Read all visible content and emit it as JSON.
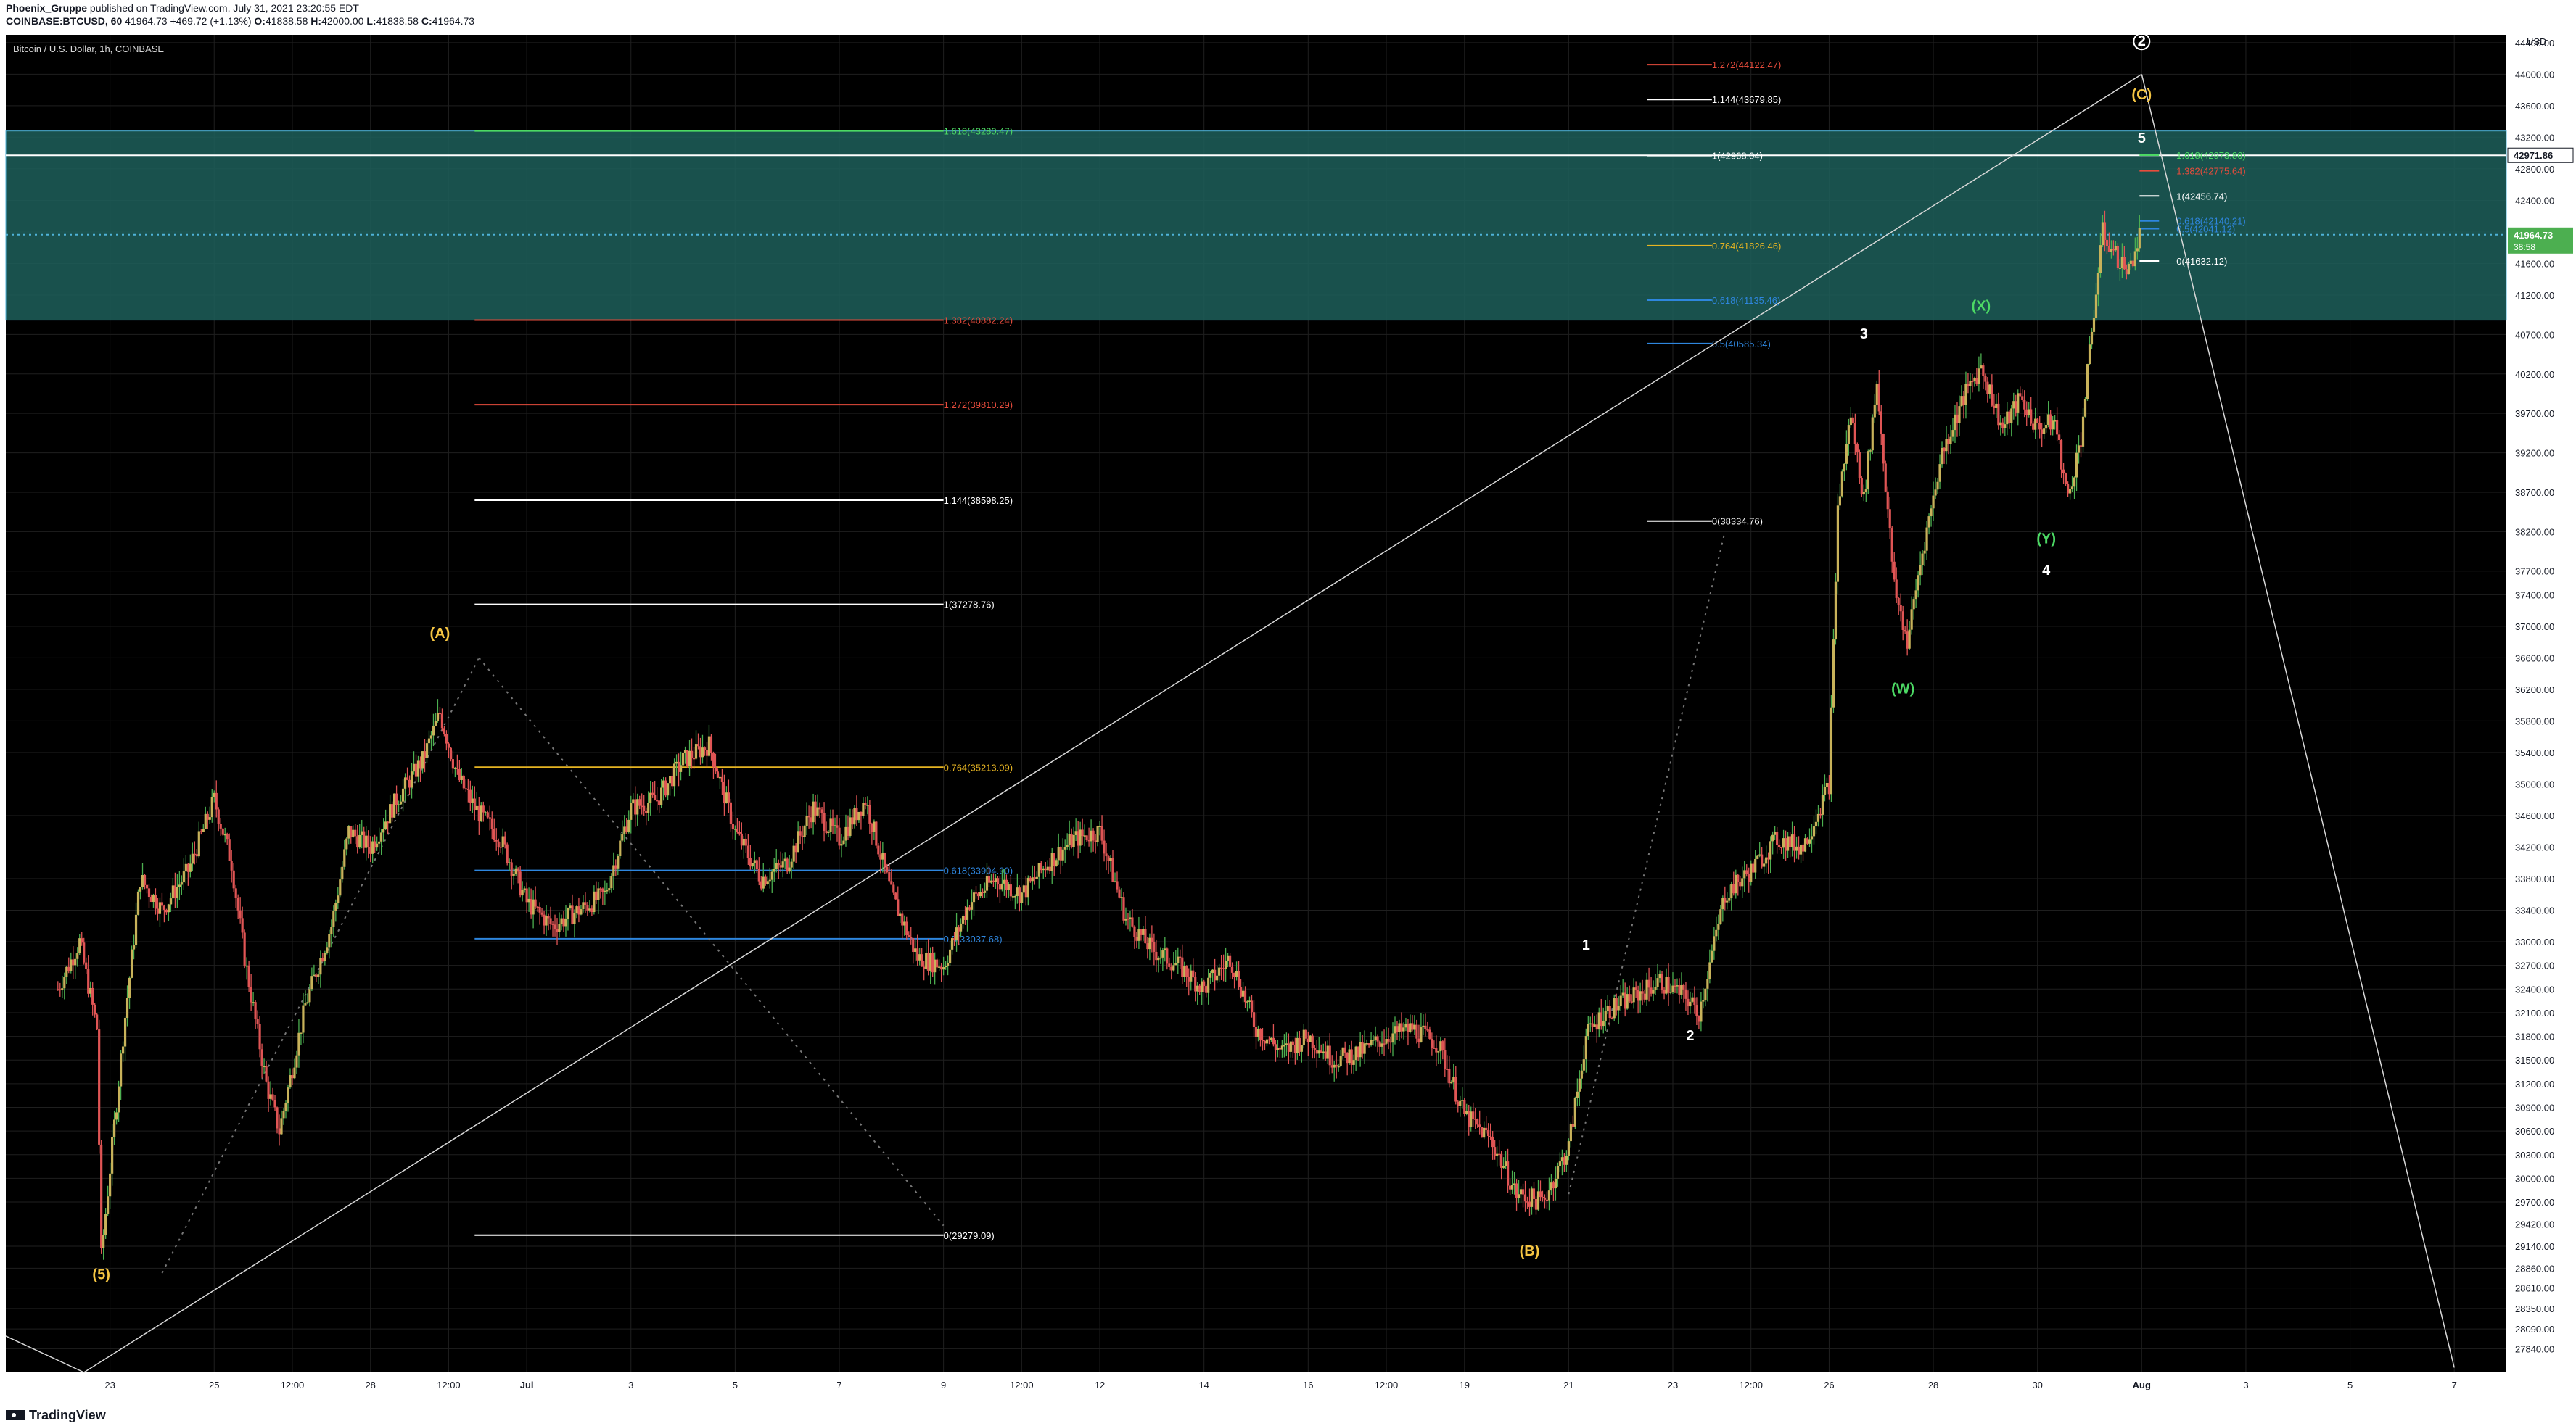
{
  "header": {
    "published_by": "Phoenix_Gruppe",
    "published_text": "published on TradingView.com, July 31, 2021 23:20:55 EDT",
    "symbol_line": "COINBASE:BTCUSD, 60",
    "price_now": "41964.73",
    "change": "+469.72 (+1.13%)",
    "ohlc": {
      "o_label": "O:",
      "o": "41838.58",
      "h_label": "H:",
      "h": "42000.00",
      "l_label": "L:",
      "l": "41838.58",
      "c_label": "C:",
      "c": "41964.73"
    }
  },
  "footer": {
    "brand": "TradingView"
  },
  "colors": {
    "background": "#000000",
    "grid": "#1f1f1f",
    "candle_up": "#4caf50",
    "candle_down": "#e05555",
    "candle_body_up": "#c8b25a",
    "zone_fill": "#1d5f5a",
    "fib_gold": "#e6b422",
    "fib_blue": "#2e86de",
    "fib_red": "#e74c3c",
    "fib_green": "#4cd964",
    "fib_white": "#d8d8d8",
    "wave_yellow": "#f5c542",
    "wave_green": "#4cd964",
    "last_price": "#4caf50",
    "crosshair_price": "#2962ff"
  },
  "chart_data": {
    "type": "candlestick",
    "title": "Bitcoin / U.S. Dollar, 1h, COINBASE",
    "ylabel": "USD",
    "ylim": [
      27540,
      44500
    ],
    "x_tick_labels": [
      "23",
      "25",
      "12:00",
      "28",
      "12:00",
      "Jul",
      "3",
      "5",
      "7",
      "9",
      "12:00",
      "12",
      "14",
      "16",
      "12:00",
      "19",
      "21",
      "23",
      "12:00",
      "26",
      "28",
      "30",
      "Aug",
      "3",
      "5",
      "7"
    ],
    "y_tick_labels": [
      "44400.00",
      "44000.00",
      "43600.00",
      "43200.00",
      "42800.00",
      "42400.00",
      "42000.00",
      "41600.00",
      "41200.00",
      "40700.00",
      "40200.00",
      "39700.00",
      "39200.00",
      "38700.00",
      "38200.00",
      "37700.00",
      "37400.00",
      "37000.00",
      "36600.00",
      "36200.00",
      "35800.00",
      "35400.00",
      "35000.00",
      "34600.00",
      "34200.00",
      "33800.00",
      "33400.00",
      "33000.00",
      "32700.00",
      "32400.00",
      "32100.00",
      "31800.00",
      "31500.00",
      "31200.00",
      "30900.00",
      "30600.00",
      "30300.00",
      "30000.00",
      "29700.00",
      "29420.00",
      "29140.00",
      "28860.00",
      "28610.00",
      "28350.00",
      "28090.00",
      "27840.00"
    ],
    "price_tags": [
      {
        "label": "42971.86",
        "value": 42971.86
      },
      {
        "label": "41964.73",
        "sub": "38:58",
        "value": 41964.73
      }
    ],
    "price_path": [
      {
        "d": "Jun 22 00:00",
        "p": 32400
      },
      {
        "d": "Jun 22 10:00",
        "p": 33000
      },
      {
        "d": "Jun 22 18:00",
        "p": 31900
      },
      {
        "d": "Jun 22 20:00",
        "p": 29000
      },
      {
        "d": "Jun 23 06:00",
        "p": 31800
      },
      {
        "d": "Jun 23 14:00",
        "p": 33800
      },
      {
        "d": "Jun 24 00:00",
        "p": 33400
      },
      {
        "d": "Jun 24 12:00",
        "p": 33900
      },
      {
        "d": "Jun 25 00:00",
        "p": 34800
      },
      {
        "d": "Jun 25 08:00",
        "p": 34000
      },
      {
        "d": "Jun 25 14:00",
        "p": 32800
      },
      {
        "d": "Jun 26 00:00",
        "p": 31200
      },
      {
        "d": "Jun 26 06:00",
        "p": 30600
      },
      {
        "d": "Jun 26 18:00",
        "p": 32200
      },
      {
        "d": "Jun 27 06:00",
        "p": 33200
      },
      {
        "d": "Jun 27 14:00",
        "p": 34400
      },
      {
        "d": "Jun 28 00:00",
        "p": 34200
      },
      {
        "d": "Jun 28 12:00",
        "p": 34800
      },
      {
        "d": "Jun 29 00:00",
        "p": 35300
      },
      {
        "d": "Jun 29 08:00",
        "p": 35900
      },
      {
        "d": "Jun 29 16:00",
        "p": 35100
      },
      {
        "d": "Jun 30 00:00",
        "p": 34700
      },
      {
        "d": "Jun 30 12:00",
        "p": 34300
      },
      {
        "d": "Jul 1 00:00",
        "p": 33500
      },
      {
        "d": "Jul 1 12:00",
        "p": 33200
      },
      {
        "d": "Jul 2 00:00",
        "p": 33400
      },
      {
        "d": "Jul 2 12:00",
        "p": 33600
      },
      {
        "d": "Jul 3 00:00",
        "p": 34700
      },
      {
        "d": "Jul 3 12:00",
        "p": 34800
      },
      {
        "d": "Jul 4 00:00",
        "p": 35300
      },
      {
        "d": "Jul 4 12:00",
        "p": 35500
      },
      {
        "d": "Jul 5 00:00",
        "p": 34400
      },
      {
        "d": "Jul 5 12:00",
        "p": 33800
      },
      {
        "d": "Jul 6 00:00",
        "p": 34000
      },
      {
        "d": "Jul 6 12:00",
        "p": 34700
      },
      {
        "d": "Jul 7 00:00",
        "p": 34300
      },
      {
        "d": "Jul 7 12:00",
        "p": 34800
      },
      {
        "d": "Jul 8 00:00",
        "p": 33600
      },
      {
        "d": "Jul 8 12:00",
        "p": 32800
      },
      {
        "d": "Jul 9 00:00",
        "p": 32700
      },
      {
        "d": "Jul 9 12:00",
        "p": 33500
      },
      {
        "d": "Jul 10 00:00",
        "p": 33800
      },
      {
        "d": "Jul 10 12:00",
        "p": 33600
      },
      {
        "d": "Jul 11 00:00",
        "p": 34000
      },
      {
        "d": "Jul 11 12:00",
        "p": 34300
      },
      {
        "d": "Jul 12 00:00",
        "p": 34400
      },
      {
        "d": "Jul 12 12:00",
        "p": 33300
      },
      {
        "d": "Jul 13 00:00",
        "p": 32900
      },
      {
        "d": "Jul 13 12:00",
        "p": 32700
      },
      {
        "d": "Jul 14 00:00",
        "p": 32400
      },
      {
        "d": "Jul 14 12:00",
        "p": 32800
      },
      {
        "d": "Jul 15 00:00",
        "p": 31900
      },
      {
        "d": "Jul 15 12:00",
        "p": 31600
      },
      {
        "d": "Jul 16 00:00",
        "p": 31800
      },
      {
        "d": "Jul 16 12:00",
        "p": 31500
      },
      {
        "d": "Jul 17 00:00",
        "p": 31600
      },
      {
        "d": "Jul 17 12:00",
        "p": 31800
      },
      {
        "d": "Jul 18 00:00",
        "p": 31900
      },
      {
        "d": "Jul 18 12:00",
        "p": 31700
      },
      {
        "d": "Jul 19 00:00",
        "p": 30800
      },
      {
        "d": "Jul 19 12:00",
        "p": 30500
      },
      {
        "d": "Jul 20 00:00",
        "p": 29800
      },
      {
        "d": "Jul 20 12:00",
        "p": 29700
      },
      {
        "d": "Jul 21 00:00",
        "p": 30400
      },
      {
        "d": "Jul 21 08:00",
        "p": 31800
      },
      {
        "d": "Jul 21 16:00",
        "p": 32100
      },
      {
        "d": "Jul 22 06:00",
        "p": 32300
      },
      {
        "d": "Jul 22 18:00",
        "p": 32500
      },
      {
        "d": "Jul 23 06:00",
        "p": 32300
      },
      {
        "d": "Jul 23 12:00",
        "p": 32100
      },
      {
        "d": "Jul 24 00:00",
        "p": 33600
      },
      {
        "d": "Jul 24 12:00",
        "p": 33900
      },
      {
        "d": "Jul 25 00:00",
        "p": 34300
      },
      {
        "d": "Jul 25 12:00",
        "p": 34200
      },
      {
        "d": "Jul 26 00:00",
        "p": 35000
      },
      {
        "d": "Jul 26 04:00",
        "p": 38500
      },
      {
        "d": "Jul 26 10:00",
        "p": 39700
      },
      {
        "d": "Jul 26 16:00",
        "p": 38600
      },
      {
        "d": "Jul 26 22:00",
        "p": 40100
      },
      {
        "d": "Jul 27 06:00",
        "p": 37500
      },
      {
        "d": "Jul 27 12:00",
        "p": 36800
      },
      {
        "d": "Jul 27 18:00",
        "p": 37800
      },
      {
        "d": "Jul 28 04:00",
        "p": 39200
      },
      {
        "d": "Jul 28 14:00",
        "p": 39900
      },
      {
        "d": "Jul 28 22:00",
        "p": 40300
      },
      {
        "d": "Jul 29 08:00",
        "p": 39500
      },
      {
        "d": "Jul 29 16:00",
        "p": 39900
      },
      {
        "d": "Jul 30 00:00",
        "p": 39500
      },
      {
        "d": "Jul 30 08:00",
        "p": 39600
      },
      {
        "d": "Jul 30 14:00",
        "p": 38600
      },
      {
        "d": "Jul 30 20:00",
        "p": 39400
      },
      {
        "d": "Jul 31 02:00",
        "p": 41000
      },
      {
        "d": "Jul 31 06:00",
        "p": 42000
      },
      {
        "d": "Jul 31 12:00",
        "p": 41700
      },
      {
        "d": "Jul 31 18:00",
        "p": 41500
      },
      {
        "d": "Jul 31 23:00",
        "p": 41964.73
      }
    ],
    "zones": [
      {
        "from": 40882.24,
        "to": 43280.47,
        "color": "#1d5f5a",
        "opacity": 0.85
      }
    ],
    "horizontal_lines": [
      {
        "value": 42971.86,
        "color": "#ffffff",
        "style": "solid"
      },
      {
        "value": 41964.73,
        "color": "#4fb3d9",
        "style": "dotted"
      }
    ],
    "fib_sets": [
      {
        "start_date": "Jun 30 00:00",
        "end_date": "Jul 9 00:00",
        "levels": [
          {
            "label": "1.618(43280.47)",
            "value": 43280.47,
            "color": "#4cd964"
          },
          {
            "label": "1.382(40882.24)",
            "value": 40882.24,
            "color": "#e74c3c"
          },
          {
            "label": "1.272(39810.29)",
            "value": 39810.29,
            "color": "#e74c3c"
          },
          {
            "label": "1.144(38598.25)",
            "value": 38598.25,
            "color": "#ffffff"
          },
          {
            "label": "1(37278.76)",
            "value": 37278.76,
            "color": "#ffffff"
          },
          {
            "label": "0.764(35213.09)",
            "value": 35213.09,
            "color": "#e6b422"
          },
          {
            "label": "0.618(33904.90)",
            "value": 33904.9,
            "color": "#2e86de"
          },
          {
            "label": "0.5(33037.68)",
            "value": 33037.68,
            "color": "#2e86de"
          },
          {
            "label": "0(29279.09)",
            "value": 29279.09,
            "color": "#ffffff"
          }
        ]
      },
      {
        "start_date": "Jul 22 12:00",
        "end_date": "Jul 23 18:00",
        "levels": [
          {
            "label": "1.272(44122.47)",
            "value": 44122.47,
            "color": "#e74c3c"
          },
          {
            "label": "1.144(43679.85)",
            "value": 43679.85,
            "color": "#ffffff"
          },
          {
            "label": "1(42968.04)",
            "value": 42968.04,
            "color": "#ffffff"
          },
          {
            "label": "0.764(41826.46)",
            "value": 41826.46,
            "color": "#e6b422"
          },
          {
            "label": "0.618(41135.46)",
            "value": 41135.46,
            "color": "#2e86de"
          },
          {
            "label": "0.5(40585.34)",
            "value": 40585.34,
            "color": "#2e86de"
          },
          {
            "label": "0(38334.76)",
            "value": 38334.76,
            "color": "#ffffff"
          }
        ]
      },
      {
        "start_date": "Jul 31 23:00",
        "end_date": "Aug 1 08:00",
        "levels": [
          {
            "label": "1.618(42973.86)",
            "value": 42973.86,
            "color": "#4cd964"
          },
          {
            "label": "1.382(42775.64)",
            "value": 42775.64,
            "color": "#e74c3c"
          },
          {
            "label": "1(42456.74)",
            "value": 42456.74,
            "color": "#ffffff"
          },
          {
            "label": "0.618(42140.21)",
            "value": 42140.21,
            "color": "#2e86de"
          },
          {
            "label": "0.5(42041.12)",
            "value": 42041.12,
            "color": "#2e86de"
          },
          {
            "label": "0(41632.12)",
            "value": 41632.12,
            "color": "#ffffff"
          }
        ]
      }
    ],
    "trend_lines": [
      {
        "from": {
          "d": "Jun 21 00:00",
          "p": 28000
        },
        "to": {
          "d": "Jun 22 12:00",
          "p": 27540
        },
        "color": "#d8d8d8",
        "style": "solid"
      },
      {
        "from": {
          "d": "Jun 22 12:00",
          "p": 27540
        },
        "to": {
          "d": "Aug 1 00:00",
          "p": 44000
        },
        "color": "#d8d8d8",
        "style": "solid"
      },
      {
        "from": {
          "d": "Aug 1 00:00",
          "p": 44000
        },
        "to": {
          "d": "Aug 7 00:00",
          "p": 27600
        },
        "color": "#d8d8d8",
        "style": "solid"
      },
      {
        "from": {
          "d": "Jun 24 00:00",
          "p": 28800
        },
        "to": {
          "d": "Jun 30 02:00",
          "p": 36600
        },
        "color": "#777777",
        "style": "dotted"
      },
      {
        "from": {
          "d": "Jun 30 02:00",
          "p": 36600
        },
        "to": {
          "d": "Jul 9 00:00",
          "p": 29400
        },
        "color": "#777777",
        "style": "dotted"
      },
      {
        "from": {
          "d": "Jul 21 00:00",
          "p": 29800
        },
        "to": {
          "d": "Jul 24 00:00",
          "p": 38200
        },
        "color": "#777777",
        "style": "dotted"
      }
    ],
    "wave_labels": [
      {
        "text": "(5)",
        "d": "Jun 22 20:00",
        "p": 28720,
        "color": "#f5c542"
      },
      {
        "text": "(A)",
        "d": "Jun 29 08:00",
        "p": 36850,
        "color": "#f5c542"
      },
      {
        "text": "(B)",
        "d": "Jul 20 06:00",
        "p": 29020,
        "color": "#f5c542"
      },
      {
        "text": "1",
        "d": "Jul 21 08:00",
        "p": 32900,
        "color": "#ffffff"
      },
      {
        "text": "2",
        "d": "Jul 23 08:00",
        "p": 31750,
        "color": "#ffffff"
      },
      {
        "text": "3",
        "d": "Jul 26 16:00",
        "p": 40650,
        "color": "#ffffff"
      },
      {
        "text": "(W)",
        "d": "Jul 27 10:00",
        "p": 36150,
        "color": "#4cd964"
      },
      {
        "text": "(X)",
        "d": "Jul 28 22:00",
        "p": 41000,
        "color": "#4cd964"
      },
      {
        "text": "(Y)",
        "d": "Jul 30 04:00",
        "p": 38050,
        "color": "#4cd964"
      },
      {
        "text": "4",
        "d": "Jul 30 04:00",
        "p": 37650,
        "color": "#ffffff"
      },
      {
        "text": "5",
        "d": "Aug 1 00:00",
        "p": 43130,
        "color": "#ffffff"
      },
      {
        "text": "(C)",
        "d": "Aug 1 00:00",
        "p": 43680,
        "color": "#f5c542"
      },
      {
        "text": "2",
        "d": "Aug 1 00:00",
        "p": 44360,
        "color": "#ffffff",
        "circled": true
      }
    ]
  }
}
